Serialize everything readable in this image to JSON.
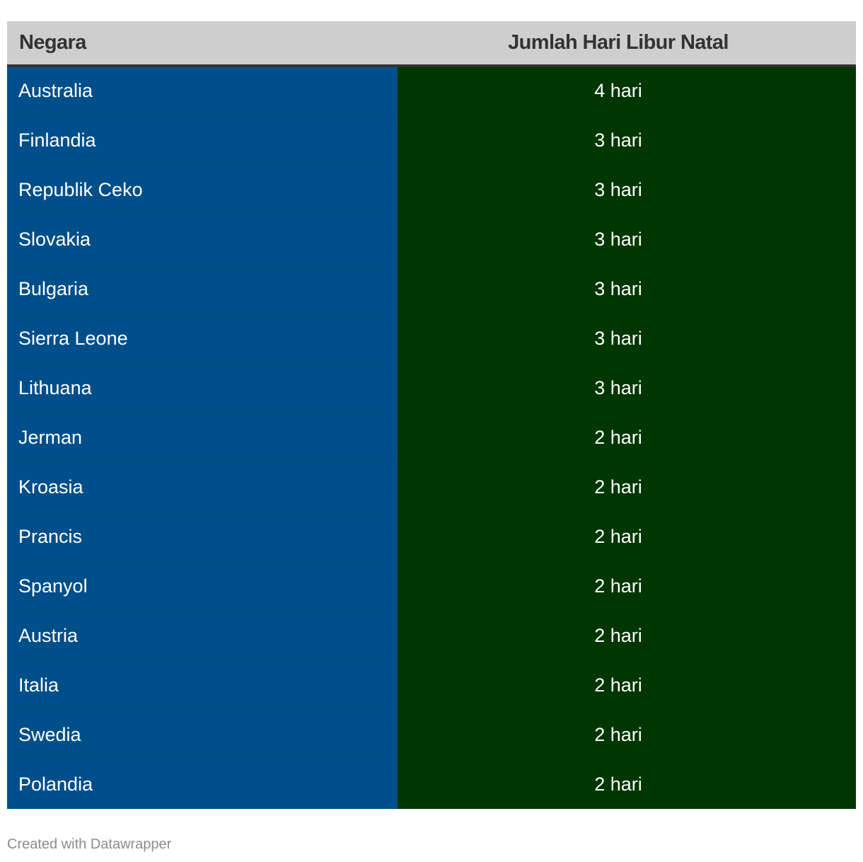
{
  "chart_data": {
    "type": "table",
    "columns": [
      "Negara",
      "Jumlah Hari Libur Natal"
    ],
    "rows": [
      {
        "country": "Australia",
        "days": "4 hari"
      },
      {
        "country": "Finlandia",
        "days": "3 hari"
      },
      {
        "country": "Republik Ceko",
        "days": "3 hari"
      },
      {
        "country": "Slovakia",
        "days": "3 hari"
      },
      {
        "country": "Bulgaria",
        "days": "3 hari"
      },
      {
        "country": "Sierra Leone",
        "days": "3 hari"
      },
      {
        "country": "Lithuana",
        "days": "3 hari"
      },
      {
        "country": "Jerman",
        "days": "2 hari"
      },
      {
        "country": "Kroasia",
        "days": "2 hari"
      },
      {
        "country": "Prancis",
        "days": "2 hari"
      },
      {
        "country": "Spanyol",
        "days": "2 hari"
      },
      {
        "country": "Austria",
        "days": "2 hari"
      },
      {
        "country": "Italia",
        "days": "2 hari"
      },
      {
        "country": "Swedia",
        "days": "2 hari"
      },
      {
        "country": "Polandia",
        "days": "2 hari"
      }
    ],
    "colors": {
      "header_bg": "#cecece",
      "country_bg": "#004f8a",
      "days_bg": "#003600",
      "header_text": "#333333",
      "cell_text": "#ffffff"
    }
  },
  "footer": {
    "credit": "Created with Datawrapper"
  }
}
